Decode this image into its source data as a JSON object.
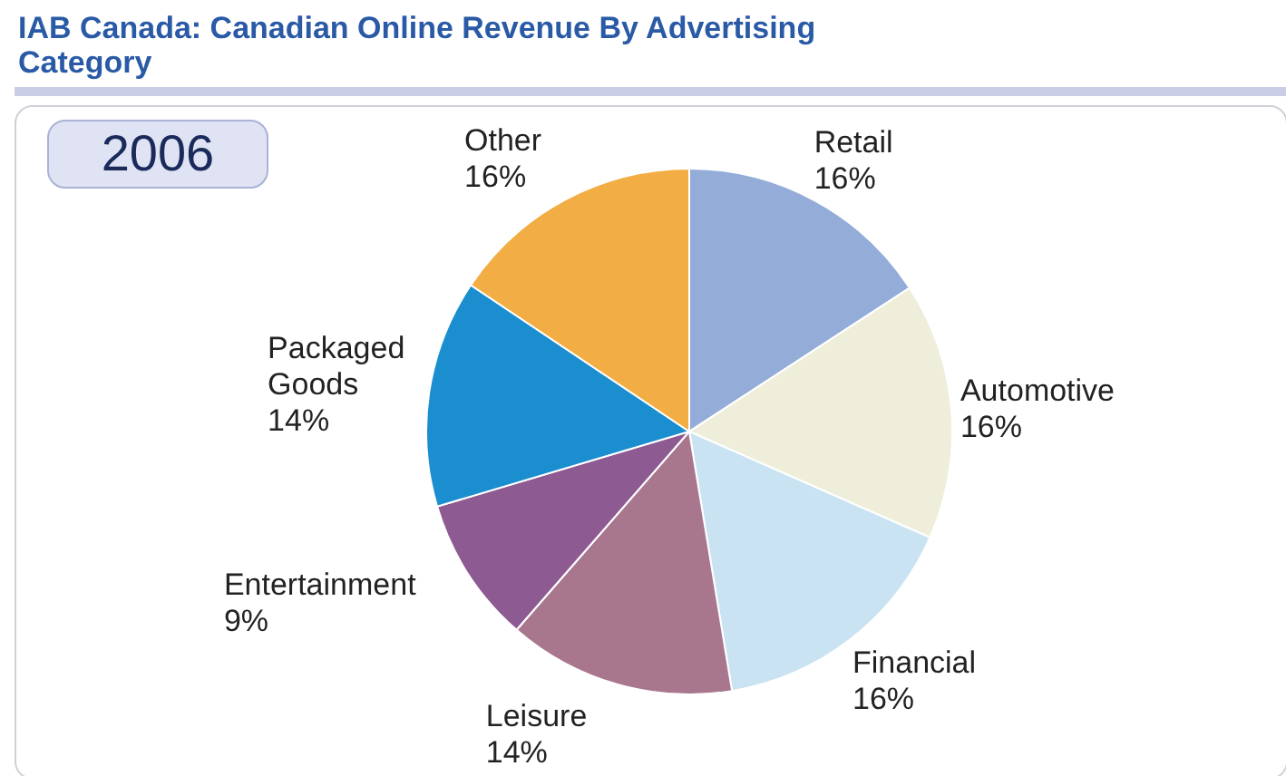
{
  "chart_data": {
    "type": "pie",
    "title": "IAB Canada: Canadian Online Revenue By Advertising Category",
    "subtitle": "2006",
    "categories": [
      "Retail",
      "Automotive",
      "Financial",
      "Leisure",
      "Entertainment",
      "Packaged Goods",
      "Other"
    ],
    "values": [
      15.8,
      15.8,
      15.8,
      14,
      9,
      14,
      15.6
    ],
    "value_labels": [
      "16%",
      "16%",
      "16%",
      "14%",
      "9%",
      "14%",
      "16%"
    ],
    "colors": [
      "#94acd8",
      "#eeeedb",
      "#c9e3f3",
      "#a8778e",
      "#8e5a92",
      "#1b8ed0",
      "#f2ae45"
    ],
    "legend": false
  }
}
